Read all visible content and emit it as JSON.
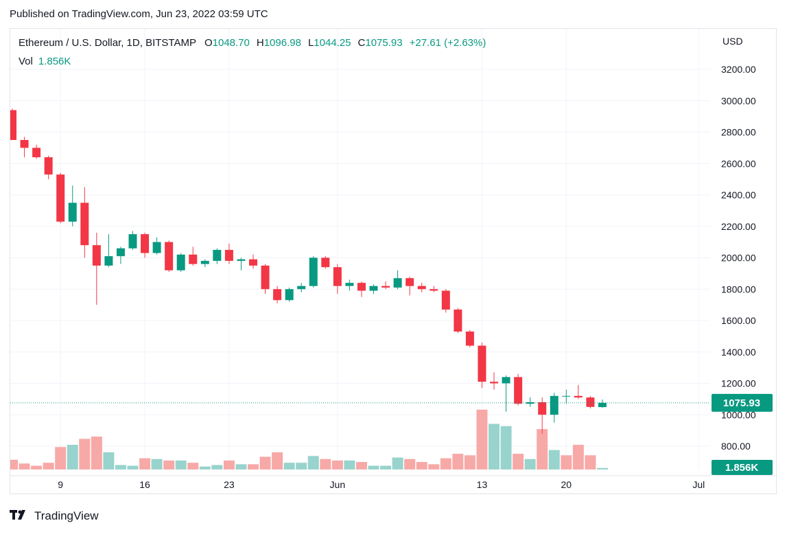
{
  "header": {
    "published": "Published on TradingView.com, Jun 23, 2022 03:59 UTC"
  },
  "legend": {
    "symbol": "Ethereum / U.S. Dollar, 1D, BITSTAMP",
    "open_label": "O",
    "open": "1048.70",
    "high_label": "H",
    "high": "1096.98",
    "low_label": "L",
    "low": "1044.25",
    "close_label": "C",
    "close": "1075.93",
    "change": "+27.61 (+2.63%)",
    "vol_label": "Vol",
    "vol": "1.856K"
  },
  "axis": {
    "currency": "USD",
    "price_badge": "1075.93",
    "volume_badge": "1.856K"
  },
  "footer": {
    "brand": "TradingView",
    "logo_icon": "tradingview-logo-icon"
  },
  "colors": {
    "up": "#089981",
    "down": "#f23645",
    "up_vol": "#98d3cd",
    "down_vol": "#f7a9a7",
    "grid": "#f0f3fa"
  },
  "chart_data": {
    "type": "candlestick",
    "ylim": [
      700,
      3400
    ],
    "y_ticks": [
      800,
      1000,
      1200,
      1400,
      1600,
      1800,
      2000,
      2200,
      2400,
      2600,
      2800,
      3000,
      3200
    ],
    "x_tick_labels": [
      {
        "label": "9",
        "index": 4
      },
      {
        "label": "16",
        "index": 11
      },
      {
        "label": "23",
        "index": 18
      },
      {
        "label": "Jun",
        "index": 27
      },
      {
        "label": "13",
        "index": 39
      },
      {
        "label": "20",
        "index": 46
      },
      {
        "label": "Jul",
        "index": 57
      }
    ],
    "last_price": 1075.93,
    "candles": [
      {
        "i": 0,
        "o": 2940,
        "h": 2950,
        "l": 2750,
        "c": 2750
      },
      {
        "i": 1,
        "o": 2750,
        "h": 2770,
        "l": 2640,
        "c": 2700
      },
      {
        "i": 2,
        "o": 2700,
        "h": 2720,
        "l": 2630,
        "c": 2640
      },
      {
        "i": 3,
        "o": 2640,
        "h": 2650,
        "l": 2500,
        "c": 2530
      },
      {
        "i": 4,
        "o": 2530,
        "h": 2540,
        "l": 2220,
        "c": 2230
      },
      {
        "i": 5,
        "o": 2230,
        "h": 2460,
        "l": 2200,
        "c": 2350
      },
      {
        "i": 6,
        "o": 2350,
        "h": 2450,
        "l": 2000,
        "c": 2080
      },
      {
        "i": 7,
        "o": 2080,
        "h": 2160,
        "l": 1700,
        "c": 1950
      },
      {
        "i": 8,
        "o": 1950,
        "h": 2150,
        "l": 1940,
        "c": 2010
      },
      {
        "i": 9,
        "o": 2010,
        "h": 2070,
        "l": 1960,
        "c": 2060
      },
      {
        "i": 10,
        "o": 2060,
        "h": 2170,
        "l": 2050,
        "c": 2150
      },
      {
        "i": 11,
        "o": 2150,
        "h": 2160,
        "l": 2000,
        "c": 2030
      },
      {
        "i": 12,
        "o": 2030,
        "h": 2130,
        "l": 2020,
        "c": 2100
      },
      {
        "i": 13,
        "o": 2100,
        "h": 2110,
        "l": 1910,
        "c": 1920
      },
      {
        "i": 14,
        "o": 1920,
        "h": 2030,
        "l": 1910,
        "c": 2020
      },
      {
        "i": 15,
        "o": 2020,
        "h": 2070,
        "l": 1950,
        "c": 1960
      },
      {
        "i": 16,
        "o": 1960,
        "h": 1990,
        "l": 1940,
        "c": 1980
      },
      {
        "i": 17,
        "o": 1980,
        "h": 2060,
        "l": 1960,
        "c": 2050
      },
      {
        "i": 18,
        "o": 2050,
        "h": 2090,
        "l": 1960,
        "c": 1980
      },
      {
        "i": 19,
        "o": 1980,
        "h": 2000,
        "l": 1920,
        "c": 1990
      },
      {
        "i": 20,
        "o": 1990,
        "h": 2020,
        "l": 1930,
        "c": 1950
      },
      {
        "i": 21,
        "o": 1950,
        "h": 1960,
        "l": 1770,
        "c": 1800
      },
      {
        "i": 22,
        "o": 1800,
        "h": 1820,
        "l": 1710,
        "c": 1730
      },
      {
        "i": 23,
        "o": 1730,
        "h": 1810,
        "l": 1720,
        "c": 1800
      },
      {
        "i": 24,
        "o": 1800,
        "h": 1840,
        "l": 1780,
        "c": 1820
      },
      {
        "i": 25,
        "o": 1820,
        "h": 2010,
        "l": 1810,
        "c": 2000
      },
      {
        "i": 26,
        "o": 2000,
        "h": 2010,
        "l": 1930,
        "c": 1940
      },
      {
        "i": 27,
        "o": 1940,
        "h": 1960,
        "l": 1770,
        "c": 1820
      },
      {
        "i": 28,
        "o": 1820,
        "h": 1860,
        "l": 1790,
        "c": 1840
      },
      {
        "i": 29,
        "o": 1840,
        "h": 1850,
        "l": 1750,
        "c": 1790
      },
      {
        "i": 30,
        "o": 1790,
        "h": 1830,
        "l": 1770,
        "c": 1820
      },
      {
        "i": 31,
        "o": 1820,
        "h": 1850,
        "l": 1800,
        "c": 1810
      },
      {
        "i": 32,
        "o": 1810,
        "h": 1920,
        "l": 1800,
        "c": 1870
      },
      {
        "i": 33,
        "o": 1870,
        "h": 1880,
        "l": 1760,
        "c": 1820
      },
      {
        "i": 34,
        "o": 1820,
        "h": 1840,
        "l": 1780,
        "c": 1800
      },
      {
        "i": 35,
        "o": 1800,
        "h": 1820,
        "l": 1780,
        "c": 1790
      },
      {
        "i": 36,
        "o": 1790,
        "h": 1800,
        "l": 1650,
        "c": 1670
      },
      {
        "i": 37,
        "o": 1670,
        "h": 1680,
        "l": 1520,
        "c": 1530
      },
      {
        "i": 38,
        "o": 1530,
        "h": 1540,
        "l": 1430,
        "c": 1440
      },
      {
        "i": 39,
        "o": 1440,
        "h": 1460,
        "l": 1170,
        "c": 1210
      },
      {
        "i": 40,
        "o": 1210,
        "h": 1270,
        "l": 1160,
        "c": 1200
      },
      {
        "i": 41,
        "o": 1200,
        "h": 1250,
        "l": 1020,
        "c": 1240
      },
      {
        "i": 42,
        "o": 1240,
        "h": 1260,
        "l": 1060,
        "c": 1070
      },
      {
        "i": 43,
        "o": 1070,
        "h": 1110,
        "l": 1050,
        "c": 1080
      },
      {
        "i": 44,
        "o": 1080,
        "h": 1110,
        "l": 880,
        "c": 1000
      },
      {
        "i": 45,
        "o": 1000,
        "h": 1140,
        "l": 950,
        "c": 1120
      },
      {
        "i": 46,
        "o": 1120,
        "h": 1160,
        "l": 1070,
        "c": 1120
      },
      {
        "i": 47,
        "o": 1120,
        "h": 1190,
        "l": 1100,
        "c": 1110
      },
      {
        "i": 48,
        "o": 1110,
        "h": 1120,
        "l": 1040,
        "c": 1050
      },
      {
        "i": 49,
        "o": 1048.7,
        "h": 1096.98,
        "l": 1044.25,
        "c": 1075.93
      }
    ],
    "volumes": [
      {
        "i": 0,
        "v": 0.13,
        "up": false
      },
      {
        "i": 1,
        "v": 0.08,
        "up": false
      },
      {
        "i": 2,
        "v": 0.05,
        "up": false
      },
      {
        "i": 3,
        "v": 0.09,
        "up": false
      },
      {
        "i": 4,
        "v": 0.3,
        "up": false
      },
      {
        "i": 5,
        "v": 0.33,
        "up": true
      },
      {
        "i": 6,
        "v": 0.41,
        "up": false
      },
      {
        "i": 7,
        "v": 0.44,
        "up": false
      },
      {
        "i": 8,
        "v": 0.23,
        "up": true
      },
      {
        "i": 9,
        "v": 0.06,
        "up": true
      },
      {
        "i": 10,
        "v": 0.05,
        "up": true
      },
      {
        "i": 11,
        "v": 0.15,
        "up": false
      },
      {
        "i": 12,
        "v": 0.14,
        "up": true
      },
      {
        "i": 13,
        "v": 0.12,
        "up": false
      },
      {
        "i": 14,
        "v": 0.12,
        "up": true
      },
      {
        "i": 15,
        "v": 0.09,
        "up": false
      },
      {
        "i": 16,
        "v": 0.04,
        "up": true
      },
      {
        "i": 17,
        "v": 0.06,
        "up": true
      },
      {
        "i": 18,
        "v": 0.12,
        "up": false
      },
      {
        "i": 19,
        "v": 0.07,
        "up": true
      },
      {
        "i": 20,
        "v": 0.07,
        "up": false
      },
      {
        "i": 21,
        "v": 0.17,
        "up": false
      },
      {
        "i": 22,
        "v": 0.23,
        "up": false
      },
      {
        "i": 23,
        "v": 0.09,
        "up": true
      },
      {
        "i": 24,
        "v": 0.09,
        "up": true
      },
      {
        "i": 25,
        "v": 0.18,
        "up": true
      },
      {
        "i": 26,
        "v": 0.14,
        "up": false
      },
      {
        "i": 27,
        "v": 0.12,
        "up": false
      },
      {
        "i": 28,
        "v": 0.12,
        "up": true
      },
      {
        "i": 29,
        "v": 0.1,
        "up": false
      },
      {
        "i": 30,
        "v": 0.05,
        "up": true
      },
      {
        "i": 31,
        "v": 0.05,
        "up": true
      },
      {
        "i": 32,
        "v": 0.16,
        "up": true
      },
      {
        "i": 33,
        "v": 0.14,
        "up": false
      },
      {
        "i": 34,
        "v": 0.1,
        "up": false
      },
      {
        "i": 35,
        "v": 0.07,
        "up": false
      },
      {
        "i": 36,
        "v": 0.15,
        "up": false
      },
      {
        "i": 37,
        "v": 0.21,
        "up": false
      },
      {
        "i": 38,
        "v": 0.19,
        "up": false
      },
      {
        "i": 39,
        "v": 0.8,
        "up": false
      },
      {
        "i": 40,
        "v": 0.61,
        "up": true
      },
      {
        "i": 41,
        "v": 0.58,
        "up": true
      },
      {
        "i": 42,
        "v": 0.21,
        "up": false
      },
      {
        "i": 43,
        "v": 0.14,
        "up": true
      },
      {
        "i": 44,
        "v": 0.54,
        "up": false
      },
      {
        "i": 45,
        "v": 0.26,
        "up": true
      },
      {
        "i": 46,
        "v": 0.19,
        "up": false
      },
      {
        "i": 47,
        "v": 0.33,
        "up": false
      },
      {
        "i": 48,
        "v": 0.19,
        "up": false
      },
      {
        "i": 49,
        "v": 0.02,
        "up": true
      }
    ]
  }
}
